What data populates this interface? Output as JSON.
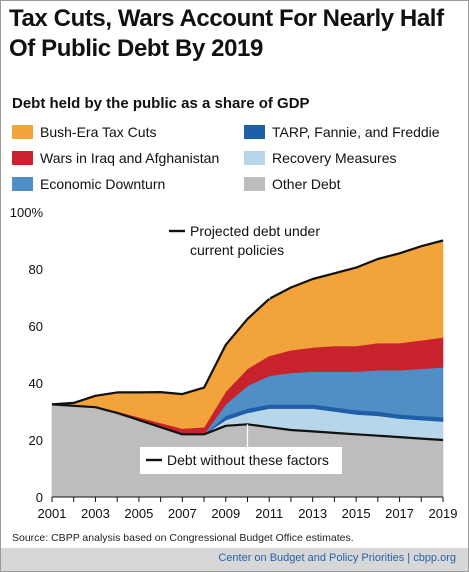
{
  "title_line1": "Tax Cuts, Wars Account For Nearly Half",
  "title_line2": "Of Public Debt By 2019",
  "subtitle": "Debt held by the public as a share of GDP",
  "legend": [
    {
      "label": "Bush-Era Tax Cuts",
      "color": "#f2a33a"
    },
    {
      "label": "TARP, Fannie, and Freddie",
      "color": "#1f5fa8"
    },
    {
      "label": "Wars in Iraq and Afghanistan",
      "color": "#c8232c"
    },
    {
      "label": "Recovery Measures",
      "color": "#b8d6ea"
    },
    {
      "label": "Economic Downturn",
      "color": "#4f8fc6"
    },
    {
      "label": "Other Debt",
      "color": "#bdbdbd"
    }
  ],
  "source": "Source:  CBPP analysis based on Congressional Budget Office estimates.",
  "footer": "Center on Budget and Policy Priorities  |  cbpp.org",
  "chart_data": {
    "type": "area",
    "stacked": true,
    "x": [
      2001,
      2002,
      2003,
      2004,
      2005,
      2006,
      2007,
      2008,
      2009,
      2010,
      2011,
      2012,
      2013,
      2014,
      2015,
      2016,
      2017,
      2018,
      2019
    ],
    "ylim": [
      0,
      100
    ],
    "yticks": [
      0,
      20,
      40,
      60,
      80,
      100
    ],
    "ytick_labels": [
      "0",
      "20",
      "40",
      "60",
      "80",
      "100%"
    ],
    "xticks": [
      2001,
      2003,
      2005,
      2007,
      2009,
      2011,
      2013,
      2015,
      2017,
      2019
    ],
    "grid": false,
    "series": [
      {
        "name": "Other Debt",
        "color": "#bdbdbd",
        "values": [
          32.5,
          32,
          31.5,
          29.5,
          27,
          24.5,
          22,
          22,
          25,
          25.5,
          24.5,
          23.5,
          23,
          22.5,
          22,
          21.5,
          21,
          20.5,
          20
        ]
      },
      {
        "name": "Recovery Measures",
        "color": "#b8d6ea",
        "values": [
          0,
          0,
          0,
          0,
          0,
          0,
          0,
          0,
          2,
          4,
          6.5,
          7.5,
          8,
          7.5,
          7,
          7,
          6.5,
          6.5,
          6.5
        ]
      },
      {
        "name": "TARP, Fannie, and Freddie",
        "color": "#1f5fa8",
        "values": [
          0,
          0,
          0,
          0,
          0,
          0,
          0,
          0,
          1.5,
          1.5,
          1.5,
          1.5,
          1.5,
          1.5,
          1.5,
          1.5,
          1.5,
          1.5,
          1.5
        ]
      },
      {
        "name": "Economic Downturn",
        "color": "#4f8fc6",
        "values": [
          0,
          0,
          0,
          0,
          0,
          0,
          0,
          0,
          4,
          8,
          10,
          11,
          11.5,
          12.5,
          13.5,
          14.5,
          15.5,
          16.5,
          17.5
        ]
      },
      {
        "name": "Wars in Iraq and Afghanistan",
        "color": "#c8232c",
        "values": [
          0,
          0,
          0.2,
          0.5,
          1,
          1.5,
          2,
          2.5,
          4.5,
          6,
          7,
          8,
          8.5,
          9,
          9,
          9.5,
          9.5,
          10,
          10.5
        ]
      },
      {
        "name": "Bush-Era Tax Cuts",
        "color": "#f2a33a",
        "values": [
          0,
          1,
          3.8,
          6.7,
          8.7,
          10.8,
          12.1,
          13.9,
          16.4,
          17.5,
          20,
          22,
          24,
          25.5,
          27.5,
          29.5,
          31.5,
          33,
          34
        ]
      }
    ],
    "annotations": [
      {
        "text_lines": [
          "Projected debt under",
          "current policies"
        ],
        "points_to": "total"
      },
      {
        "text_lines": [
          "Debt without these factors"
        ],
        "points_to": "Other Debt"
      }
    ]
  }
}
